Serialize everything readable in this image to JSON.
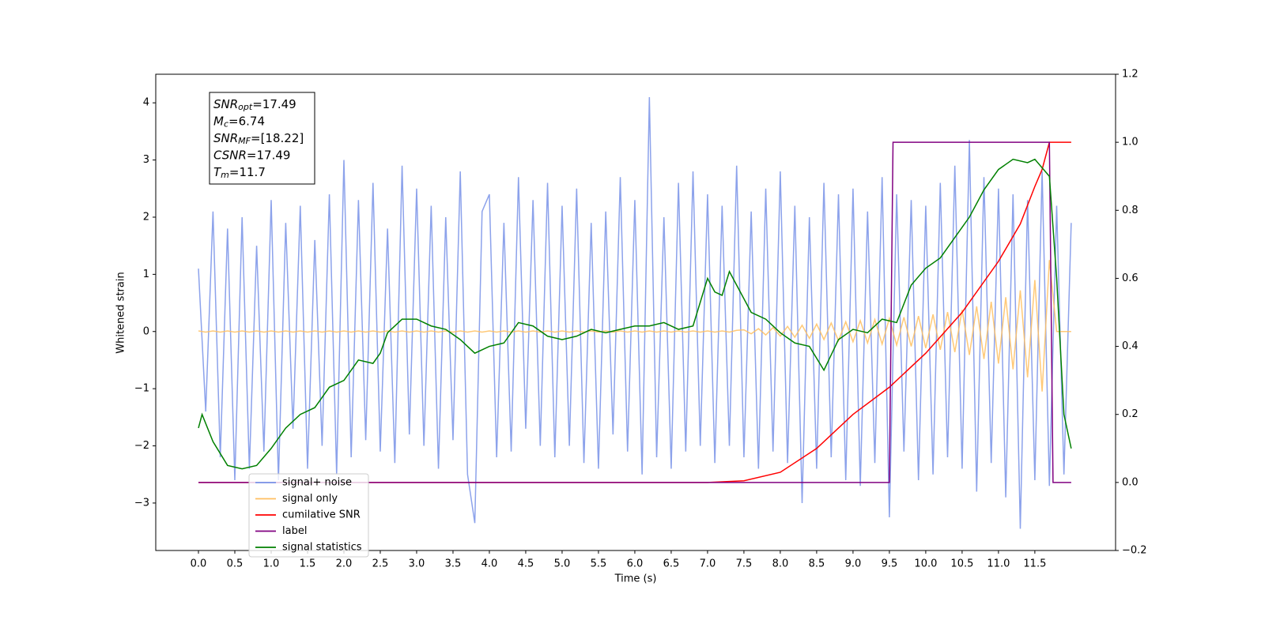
{
  "chart_data": {
    "type": "line",
    "xlabel": "Time (s)",
    "ylabel": "Whitened strain",
    "xlim": [
      -0.587,
      12.61
    ],
    "ylim": [
      -3.83,
      4.5
    ],
    "y2lim": [
      -0.2,
      1.2
    ],
    "xticks": [
      {
        "value": 0,
        "label": "0.0"
      },
      0.5,
      {
        "value": 1,
        "label": "1.0"
      },
      1.5,
      {
        "value": 2,
        "label": "2.0"
      },
      2.5,
      {
        "value": 3,
        "label": "3.0"
      },
      3.5,
      {
        "value": 4,
        "label": "4.0"
      },
      4.5,
      {
        "value": 5,
        "label": "5.0"
      },
      5.5,
      {
        "value": 6,
        "label": "6.0"
      },
      6.5,
      {
        "value": 7,
        "label": "7.0"
      },
      7.5,
      {
        "value": 8,
        "label": "8.0"
      },
      8.5,
      {
        "value": 9,
        "label": "9.0"
      },
      9.5,
      {
        "value": 10,
        "label": "10.0"
      },
      10.5,
      {
        "value": 11,
        "label": "11.0"
      },
      11.5
    ],
    "yticks": [
      {
        "value": -3,
        "label": "−3"
      },
      {
        "value": -2,
        "label": "−2"
      },
      {
        "value": -1,
        "label": "−1"
      },
      0,
      1,
      2,
      3,
      4
    ],
    "y2ticks": [
      {
        "value": -0.2,
        "label": "−0.2"
      },
      {
        "value": 0,
        "label": "0.0"
      },
      0.2,
      0.4,
      0.6,
      0.8,
      {
        "value": 1,
        "label": "1.0"
      },
      1.2
    ],
    "legend": "lower left",
    "annotations": [
      {
        "main": "SNR",
        "sub": "opt",
        "text": "=17.49"
      },
      {
        "main": "M",
        "sub": "c",
        "text": "=6.74"
      },
      {
        "main": "SNR",
        "sub": "MF",
        "text": "=[18.22]"
      },
      {
        "main": "CSNR",
        "text": "=17.49"
      },
      {
        "main": "T",
        "sub": "m",
        "text": "=11.7"
      }
    ],
    "series": [
      {
        "name": "signal+ noise",
        "color": "#7892e8",
        "x": [
          0,
          0.1,
          0.2,
          0.3,
          0.4,
          0.5,
          0.6,
          0.7,
          0.8,
          0.9,
          1,
          1.1,
          1.2,
          1.3,
          1.4,
          1.5,
          1.6,
          1.7,
          1.8,
          1.9,
          2,
          2.1,
          2.2,
          2.3,
          2.4,
          2.5,
          2.6,
          2.7,
          2.8,
          2.9,
          3,
          3.1,
          3.2,
          3.3,
          3.4,
          3.5,
          3.6,
          3.7,
          3.8,
          3.9,
          4,
          4.1,
          4.2,
          4.3,
          4.4,
          4.5,
          4.6,
          4.7,
          4.8,
          4.9,
          5,
          5.1,
          5.2,
          5.3,
          5.4,
          5.5,
          5.6,
          5.7,
          5.8,
          5.9,
          6,
          6.1,
          6.2,
          6.3,
          6.4,
          6.5,
          6.6,
          6.7,
          6.8,
          6.9,
          7,
          7.1,
          7.2,
          7.3,
          7.4,
          7.5,
          7.6,
          7.7,
          7.8,
          7.9,
          8,
          8.1,
          8.2,
          8.3,
          8.4,
          8.5,
          8.6,
          8.7,
          8.8,
          8.9,
          9,
          9.1,
          9.2,
          9.3,
          9.4,
          9.5,
          9.6,
          9.7,
          9.8,
          9.9,
          10,
          10.1,
          10.2,
          10.3,
          10.4,
          10.5,
          10.6,
          10.7,
          10.8,
          10.9,
          11,
          11.1,
          11.2,
          11.3,
          11.4,
          11.5,
          11.6,
          11.7,
          11.8,
          11.9,
          12
        ],
        "values": [
          1.1,
          -1.4,
          2.1,
          -2.2,
          1.8,
          -2.6,
          2.0,
          -2.4,
          1.5,
          -2.1,
          2.3,
          -2.6,
          1.9,
          -1.7,
          2.2,
          -2.4,
          1.6,
          -2.0,
          2.4,
          -2.5,
          3.0,
          -2.2,
          2.3,
          -1.9,
          2.6,
          -2.1,
          1.8,
          -2.3,
          2.9,
          -1.8,
          2.5,
          -2.0,
          2.2,
          -2.4,
          2.0,
          -1.9,
          2.8,
          -2.5,
          -3.35,
          2.1,
          2.4,
          -2.2,
          1.9,
          -2.1,
          2.7,
          -1.7,
          2.3,
          -2.0,
          2.6,
          -2.2,
          2.2,
          -2.0,
          2.5,
          -2.3,
          1.9,
          -2.4,
          2.1,
          -1.8,
          2.7,
          -2.1,
          2.3,
          -2.5,
          4.1,
          -2.2,
          2.0,
          -2.4,
          2.6,
          -2.1,
          2.8,
          -2.0,
          2.4,
          -2.3,
          2.2,
          -2.0,
          2.9,
          -2.2,
          2.1,
          -2.4,
          2.5,
          -2.1,
          2.8,
          -2.3,
          2.2,
          -3.0,
          2.0,
          -2.4,
          2.6,
          -2.2,
          2.4,
          -2.6,
          2.5,
          -2.7,
          2.1,
          -2.3,
          2.7,
          -3.25,
          2.4,
          -2.1,
          2.3,
          -2.6,
          2.2,
          -2.5,
          2.6,
          -2.2,
          2.9,
          -2.4,
          3.35,
          -2.8,
          2.7,
          -2.3,
          2.5,
          -2.9,
          2.4,
          -3.45,
          2.3,
          -2.6,
          2.8,
          -2.7,
          2.2,
          -2.5,
          1.9
        ]
      },
      {
        "name": "signal only",
        "color": "#ffbf60",
        "x": [
          0,
          0.1,
          0.2,
          0.3,
          0.4,
          0.5,
          0.6,
          0.7,
          0.8,
          0.9,
          1,
          1.1,
          1.2,
          1.3,
          1.4,
          1.5,
          1.6,
          1.7,
          1.8,
          1.9,
          2,
          2.1,
          2.2,
          2.3,
          2.4,
          2.5,
          2.6,
          2.7,
          2.8,
          2.9,
          3,
          3.1,
          3.2,
          3.3,
          3.4,
          3.5,
          3.6,
          3.7,
          3.8,
          3.9,
          4,
          4.1,
          4.2,
          4.3,
          4.4,
          4.5,
          4.6,
          4.7,
          4.8,
          4.9,
          5,
          5.1,
          5.2,
          5.3,
          5.4,
          5.5,
          5.6,
          5.7,
          5.8,
          5.9,
          6,
          6.1,
          6.2,
          6.3,
          6.4,
          6.5,
          6.6,
          6.7,
          6.8,
          6.9,
          7,
          7.1,
          7.2,
          7.3,
          7.4,
          7.5,
          7.6,
          7.7,
          7.8,
          7.9,
          8,
          8.1,
          8.2,
          8.3,
          8.4,
          8.5,
          8.6,
          8.7,
          8.8,
          8.9,
          9,
          9.1,
          9.2,
          9.3,
          9.4,
          9.5,
          9.6,
          9.7,
          9.8,
          9.9,
          10,
          10.1,
          10.2,
          10.3,
          10.4,
          10.5,
          10.6,
          10.7,
          10.8,
          10.9,
          11,
          11.1,
          11.2,
          11.3,
          11.4,
          11.5,
          11.6,
          11.7,
          11.8,
          11.9,
          12
        ],
        "values": [
          0.01,
          -0.01,
          0.01,
          -0.01,
          0.01,
          -0.01,
          0.01,
          -0.01,
          0.01,
          -0.01,
          0.01,
          -0.01,
          0.01,
          -0.01,
          0.01,
          -0.01,
          0.01,
          -0.01,
          0.01,
          -0.01,
          0.01,
          -0.01,
          0.01,
          -0.01,
          0.01,
          -0.01,
          0.01,
          -0.01,
          0.01,
          -0.01,
          0.01,
          -0.01,
          0.01,
          -0.01,
          0.01,
          -0.01,
          0.01,
          -0.01,
          0.01,
          -0.01,
          0.01,
          -0.01,
          0.01,
          -0.01,
          0.01,
          -0.01,
          0.01,
          -0.01,
          0.01,
          -0.01,
          0.01,
          -0.01,
          0.01,
          -0.01,
          0.01,
          -0.01,
          0.01,
          -0.01,
          0.01,
          -0.01,
          0.01,
          -0.01,
          0.01,
          -0.01,
          0.01,
          -0.01,
          0.01,
          -0.01,
          0.01,
          -0.01,
          0.01,
          -0.01,
          0.01,
          -0.01,
          0.02,
          0.03,
          -0.04,
          0.05,
          -0.06,
          0.07,
          -0.08,
          0.09,
          -0.1,
          0.11,
          -0.12,
          0.13,
          -0.14,
          0.15,
          -0.16,
          0.17,
          -0.18,
          0.19,
          -0.2,
          0.21,
          -0.22,
          0.23,
          -0.24,
          0.25,
          -0.26,
          0.27,
          -0.29,
          0.3,
          -0.32,
          0.34,
          -0.36,
          0.38,
          -0.41,
          0.44,
          -0.48,
          0.52,
          -0.56,
          0.6,
          -0.66,
          0.72,
          -0.8,
          0.9,
          -1.05,
          1.25,
          0.0,
          0.0,
          0.0
        ]
      },
      {
        "name": "cumilative SNR",
        "color": "#ff0000",
        "axis": "y2",
        "x": [
          0,
          7,
          7.5,
          8,
          8.5,
          9,
          9.5,
          10,
          10.5,
          11,
          11.3,
          11.5,
          11.6,
          11.7,
          12
        ],
        "values": [
          0,
          0,
          0.005,
          0.03,
          0.1,
          0.2,
          0.28,
          0.38,
          0.5,
          0.65,
          0.76,
          0.87,
          0.92,
          1.0,
          1.0
        ]
      },
      {
        "name": "label",
        "color": "#800080",
        "axis": "y2",
        "x": [
          0,
          9.5,
          9.55,
          11.7,
          11.75,
          12
        ],
        "values": [
          0,
          0,
          1,
          1,
          0,
          0
        ]
      },
      {
        "name": "signal statistics",
        "color": "#008000",
        "axis": "y2",
        "x": [
          0,
          0.05,
          0.2,
          0.4,
          0.6,
          0.8,
          1,
          1.2,
          1.4,
          1.6,
          1.8,
          2,
          2.2,
          2.4,
          2.5,
          2.6,
          2.8,
          3,
          3.2,
          3.4,
          3.6,
          3.8,
          4,
          4.2,
          4.4,
          4.6,
          4.8,
          5,
          5.2,
          5.4,
          5.6,
          5.8,
          6,
          6.2,
          6.4,
          6.6,
          6.8,
          7,
          7.1,
          7.2,
          7.3,
          7.4,
          7.6,
          7.8,
          8,
          8.2,
          8.4,
          8.6,
          8.8,
          9,
          9.2,
          9.4,
          9.6,
          9.8,
          10,
          10.2,
          10.4,
          10.6,
          10.8,
          11,
          11.2,
          11.4,
          11.5,
          11.7,
          11.8,
          11.9,
          12
        ],
        "values": [
          0.16,
          0.2,
          0.12,
          0.05,
          0.04,
          0.05,
          0.1,
          0.16,
          0.2,
          0.22,
          0.28,
          0.3,
          0.36,
          0.35,
          0.38,
          0.44,
          0.48,
          0.48,
          0.46,
          0.45,
          0.42,
          0.38,
          0.4,
          0.41,
          0.47,
          0.46,
          0.43,
          0.42,
          0.43,
          0.45,
          0.44,
          0.45,
          0.46,
          0.46,
          0.47,
          0.45,
          0.46,
          0.6,
          0.56,
          0.55,
          0.62,
          0.58,
          0.5,
          0.48,
          0.44,
          0.41,
          0.4,
          0.33,
          0.42,
          0.45,
          0.44,
          0.48,
          0.47,
          0.58,
          0.63,
          0.66,
          0.72,
          0.78,
          0.86,
          0.92,
          0.95,
          0.94,
          0.95,
          0.9,
          0.6,
          0.2,
          0.1
        ]
      }
    ]
  }
}
